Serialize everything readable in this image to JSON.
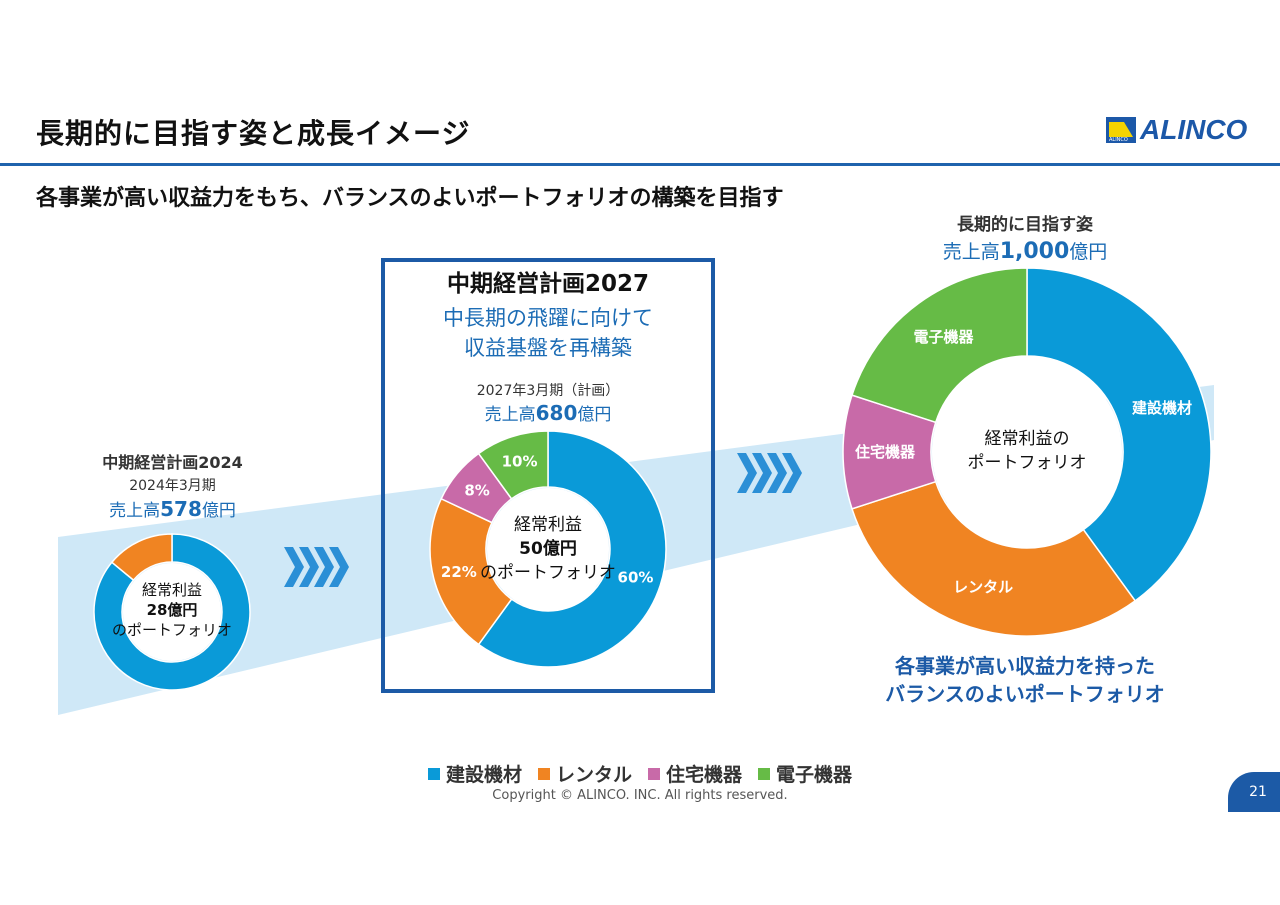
{
  "page": {
    "title": "長期的に目指す姿と成長イメージ",
    "subtitle": "各事業が高い収益力をもち、バランスのよいポートフォリオの構築を目指す",
    "logo_text": "ALINCO",
    "logo_small": "ALINCO",
    "page_number": "21",
    "copyright": "Copyright © ALINCO. INC. All rights reserved.",
    "tagline_line1": "各事業が高い収益力を持った",
    "tagline_line2": "バランスのよいポートフォリオ"
  },
  "colors": {
    "construction": "#0a9ad8",
    "rental": "#f08422",
    "housing": "#c86aa8",
    "electronics": "#66bb46",
    "accent_blue": "#1c6cb5",
    "frame_blue": "#1c5aa6",
    "band": "#cfe8f7"
  },
  "plans": {
    "p2024": {
      "name": "中期経営計画2024",
      "period": "2024年3月期",
      "sales_prefix": "売上高",
      "sales_value": "578",
      "sales_suffix": "億円",
      "center_line1": "経常利益",
      "center_line2": "28億円",
      "center_line3": "のポートフォリオ"
    },
    "p2027": {
      "name": "中期経営計画2027",
      "desc_line1": "中長期の飛躍に向けて",
      "desc_line2": "収益基盤を再構築",
      "period": "2027年3月期（計画）",
      "sales_prefix": "売上高",
      "sales_value": "680",
      "sales_suffix": "億円",
      "center_line1": "経常利益",
      "center_line2": "50億円",
      "center_line3": "のポートフォリオ"
    },
    "longterm": {
      "name": "長期的に目指す姿",
      "sales_prefix": "売上高",
      "sales_value": "1,000",
      "sales_suffix": "億円",
      "center_line1": "経常利益の",
      "center_line2": "ポートフォリオ"
    }
  },
  "legend": [
    {
      "label": "建設機材",
      "color": "#0a9ad8"
    },
    {
      "label": "レンタル",
      "color": "#f08422"
    },
    {
      "label": "住宅機器",
      "color": "#c86aa8"
    },
    {
      "label": "電子機器",
      "color": "#66bb46"
    }
  ],
  "chart_data": [
    {
      "type": "pie",
      "title": "中期経営計画2024",
      "categories": [
        "建設機材",
        "レンタル"
      ],
      "values": [
        86,
        14
      ],
      "value_labels": [
        "",
        ""
      ]
    },
    {
      "type": "pie",
      "title": "中期経営計画2027",
      "categories": [
        "建設機材",
        "レンタル",
        "住宅機器",
        "電子機器"
      ],
      "values": [
        60,
        22,
        8,
        10
      ],
      "value_labels": [
        "60%",
        "22%",
        "8%",
        "10%"
      ]
    },
    {
      "type": "pie",
      "title": "長期的に目指す姿",
      "categories": [
        "建設機材",
        "レンタル",
        "住宅機器",
        "電子機器"
      ],
      "values": [
        40,
        30,
        10,
        20
      ],
      "value_labels": [
        "建設機材",
        "レンタル",
        "住宅機器",
        "電子機器"
      ]
    }
  ]
}
